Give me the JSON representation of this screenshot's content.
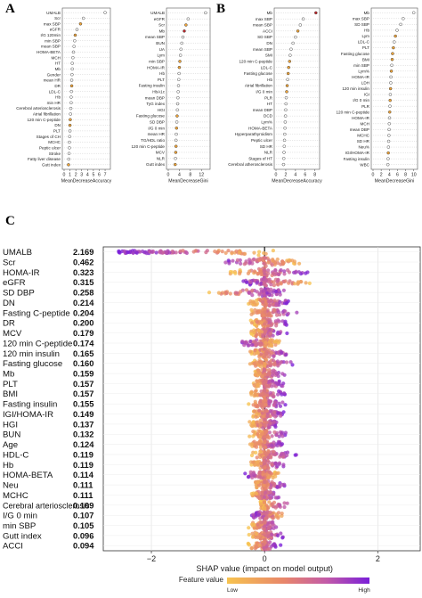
{
  "panels": {
    "A": {
      "letter": "A",
      "left": {
        "xlabel": "MeanDecreaseAccuracy",
        "ticks": [
          "0",
          "1",
          "2",
          "3",
          "4",
          "5",
          "6",
          "7"
        ],
        "xlim": [
          0,
          7.6
        ],
        "features": [
          "UMALB",
          "Scr",
          "max SBP",
          "eGFR",
          "I/G 120min",
          "min SBP",
          "mean SBP",
          "HOMA-BETA",
          "MCH",
          "HT",
          "Mb",
          "Gender",
          "mean HR",
          "DR",
          "LDL-C",
          "Hb",
          "min HR",
          "Cerebral arteriosclerosis",
          "Atrial fibrillation",
          "120 min C-peptide",
          "DN",
          "PLT",
          "Stages of CH",
          "MCHC",
          "Peptic ulcer",
          "Stroke",
          "Fatty liver disease",
          "Gutt index"
        ],
        "values": [
          7.0,
          3.3,
          2.8,
          2.2,
          1.9,
          1.8,
          1.7,
          1.6,
          1.5,
          1.4,
          1.4,
          1.35,
          1.3,
          1.3,
          1.25,
          1.2,
          1.2,
          1.15,
          1.1,
          1.05,
          1.0,
          1.0,
          0.95,
          0.9,
          0.9,
          0.85,
          0.8,
          0.75
        ],
        "fill": [
          0,
          0,
          1,
          0,
          1,
          0,
          0,
          0,
          0,
          0,
          0,
          0,
          0,
          1,
          0,
          0,
          0,
          0,
          0,
          1,
          1,
          0,
          0,
          0,
          0,
          0,
          0,
          1
        ]
      },
      "right": {
        "xlabel": "MeanDecreaseGini",
        "ticks": [
          "0",
          "4",
          "8",
          "12"
        ],
        "xlim": [
          0,
          14.5
        ],
        "features": [
          "UMALB",
          "eGFR",
          "Scr",
          "Mb",
          "mean SBP",
          "BUN",
          "UA",
          "Lym",
          "min SBP",
          "HOMA-IR",
          "Hb",
          "PLT",
          "Fasting insulin",
          "HbA1c",
          "mean DBP",
          "TyG index",
          "HGI",
          "Fasting glucose",
          "SD DBP",
          "I/G 0 min",
          "mean HR",
          "TG/HDL ratio",
          "120 min C-peptide",
          "MCV",
          "NLR",
          "Gutt index"
        ],
        "values": [
          13.5,
          7.2,
          6.4,
          5.8,
          5.3,
          4.9,
          4.6,
          4.4,
          4.2,
          4.0,
          3.9,
          3.8,
          3.7,
          3.6,
          3.5,
          3.4,
          3.3,
          3.2,
          3.1,
          3.0,
          2.9,
          2.8,
          2.8,
          2.7,
          2.6,
          2.5
        ],
        "fill": [
          0,
          0,
          1,
          2,
          0,
          0,
          0,
          0,
          1,
          1,
          0,
          0,
          0,
          0,
          0,
          0,
          0,
          1,
          0,
          1,
          0,
          0,
          1,
          1,
          0,
          1
        ]
      }
    },
    "B": {
      "letter": "B",
      "left": {
        "xlabel": "MeanDecreaseAccuracy",
        "ticks": [
          "0",
          "2",
          "4",
          "6",
          "8"
        ],
        "xlim": [
          0,
          8.6
        ],
        "features": [
          "Mb",
          "max SBP",
          "mean SBP",
          "ACCI",
          "SD SBP",
          "DN",
          "mean SBP",
          "SMI",
          "120 min C-peptide",
          "LDL-C",
          "Fasting glucose",
          "Hb",
          "Atrial fibrillation",
          "I/G 0 min",
          "PLR",
          "HT",
          "mean DBP",
          "DCD",
          "Lym%",
          "HOMA-BETA",
          "Hyperparathyroidism",
          "Peptic ulcer",
          "SD HR",
          "NLR",
          "Stages of HT",
          "Cerebral atherosclerosis"
        ],
        "values": [
          8.2,
          5.6,
          5.0,
          4.5,
          4.0,
          3.5,
          3.1,
          2.9,
          2.8,
          2.6,
          2.5,
          2.4,
          2.3,
          2.2,
          2.1,
          2.05,
          2.0,
          1.95,
          1.9,
          1.85,
          1.8,
          1.75,
          1.7,
          1.65,
          1.6,
          1.55
        ],
        "fill": [
          2,
          0,
          0,
          1,
          0,
          0,
          0,
          0,
          1,
          1,
          1,
          0,
          1,
          1,
          0,
          0,
          0,
          0,
          0,
          0,
          0,
          0,
          0,
          0,
          0,
          0
        ]
      },
      "right": {
        "xlabel": "MeanDecreaseGini",
        "ticks": [
          "0",
          "2",
          "4",
          "6",
          "8",
          "10"
        ],
        "xlim": [
          0,
          10.5
        ],
        "features": [
          "Mb",
          "max SBP",
          "SD SBP",
          "Hb",
          "Lym",
          "LDL-C",
          "PLT",
          "Fasting glucose",
          "BMI",
          "min SBP",
          "Lym%",
          "HOMA-IR",
          "LDH",
          "120 min insulin",
          "IGI",
          "I/G 0 min",
          "PLR",
          "120 min C-peptide",
          "HOMA-IR",
          "MCH",
          "mean DBP",
          "MCHC",
          "SD HR",
          "Neu%",
          "IGI/HOMA-IR",
          "Fasting insulin",
          "WBC"
        ],
        "values": [
          10.0,
          7.4,
          6.8,
          5.9,
          5.5,
          5.2,
          5.0,
          4.8,
          4.7,
          4.6,
          4.5,
          4.4,
          4.35,
          4.3,
          4.25,
          4.2,
          4.15,
          4.1,
          4.05,
          4.0,
          3.95,
          3.9,
          3.85,
          3.8,
          3.75,
          3.7,
          3.65
        ],
        "fill": [
          0,
          0,
          0,
          0,
          1,
          0,
          1,
          1,
          1,
          0,
          1,
          0,
          0,
          1,
          0,
          1,
          0,
          1,
          0,
          0,
          0,
          0,
          0,
          0,
          1,
          0,
          0
        ]
      }
    },
    "C": {
      "letter": "C",
      "features": [
        "UMALB",
        "Scr",
        "HOMA-IR",
        "eGFR",
        "SD DBP",
        "DN",
        "Fasting C-peptide",
        "DR",
        "MCV",
        "120 min C-peptide",
        "120 min insulin",
        "Fasting glucose",
        "Mb",
        "PLT",
        "BMI",
        "Fasting insulin",
        "IGI/HOMA-IR",
        "HGI",
        "BUN",
        "Age",
        "HDL-C",
        "Hb",
        "HOMA-BETA",
        "Neu",
        "MCHC",
        "Cerebral arteriosclerosis",
        "I/G 0 min",
        "min SBP",
        "Gutt index",
        "ACCI"
      ],
      "importance": [
        "2.169",
        "0.462",
        "0.323",
        "0.315",
        "0.258",
        "0.214",
        "0.204",
        "0.200",
        "0.179",
        "0.174",
        "0.165",
        "0.160",
        "0.159",
        "0.157",
        "0.157",
        "0.155",
        "0.149",
        "0.137",
        "0.132",
        "0.124",
        "0.119",
        "0.119",
        "0.114",
        "0.111",
        "0.111",
        "0.109",
        "0.107",
        "0.105",
        "0.096",
        "0.094"
      ],
      "spread": [
        {
          "min": -2.6,
          "max": 0.2,
          "dir": "neg"
        },
        {
          "min": -0.9,
          "max": 0.7,
          "dir": "neg"
        },
        {
          "min": -0.7,
          "max": 0.9,
          "dir": "pos"
        },
        {
          "min": -0.5,
          "max": 0.9,
          "dir": "neg"
        },
        {
          "min": -1.2,
          "max": 0.5,
          "dir": "pos"
        },
        {
          "min": -0.3,
          "max": 0.5,
          "dir": "pos"
        },
        {
          "min": -0.3,
          "max": 0.6,
          "dir": "pos"
        },
        {
          "min": -0.3,
          "max": 0.5,
          "dir": "pos"
        },
        {
          "min": -0.3,
          "max": 0.4,
          "dir": "pos"
        },
        {
          "min": -0.5,
          "max": 0.3,
          "dir": "neg"
        },
        {
          "min": -0.3,
          "max": 0.5,
          "dir": "pos"
        },
        {
          "min": -0.3,
          "max": 0.6,
          "dir": "pos"
        },
        {
          "min": -0.3,
          "max": 0.4,
          "dir": "pos"
        },
        {
          "min": -0.3,
          "max": 0.4,
          "dir": "pos"
        },
        {
          "min": -0.3,
          "max": 0.4,
          "dir": "pos"
        },
        {
          "min": -0.3,
          "max": 0.4,
          "dir": "pos"
        },
        {
          "min": -0.3,
          "max": 0.4,
          "dir": "pos"
        },
        {
          "min": -0.3,
          "max": 0.3,
          "dir": "pos"
        },
        {
          "min": -0.3,
          "max": 0.5,
          "dir": "pos"
        },
        {
          "min": -0.3,
          "max": 0.4,
          "dir": "pos"
        },
        {
          "min": -0.3,
          "max": 0.6,
          "dir": "pos"
        },
        {
          "min": -0.3,
          "max": 0.4,
          "dir": "pos"
        },
        {
          "min": -0.4,
          "max": 0.3,
          "dir": "neg"
        },
        {
          "min": -0.2,
          "max": 0.4,
          "dir": "pos"
        },
        {
          "min": -0.3,
          "max": 0.3,
          "dir": "pos"
        },
        {
          "min": -0.1,
          "max": 0.5,
          "dir": "pos"
        },
        {
          "min": -0.3,
          "max": 0.4,
          "dir": "neg"
        },
        {
          "min": -0.3,
          "max": 0.3,
          "dir": "pos"
        },
        {
          "min": -0.3,
          "max": 0.4,
          "dir": "pos"
        },
        {
          "min": -0.3,
          "max": 0.3,
          "dir": "pos"
        }
      ],
      "xlabel": "SHAP value (impact on model output)",
      "xticks": [
        "−2",
        "0",
        "2"
      ],
      "xlim": [
        -2.85,
        2.75
      ],
      "colorbar_title": "Feature value",
      "colorbar_low": "Low",
      "colorbar_high": "High",
      "colors": {
        "low": "#f5b94a",
        "high": "#7d1fd6"
      }
    }
  },
  "chart_data": [
    {
      "type": "scatter",
      "title": "",
      "xlabel": "SHAP value (impact on model output)",
      "ylabel": "",
      "xlim": [
        -2.85,
        2.75
      ],
      "categories": [
        "UMALB",
        "Scr",
        "HOMA-IR",
        "eGFR",
        "SD DBP",
        "DN",
        "Fasting C-peptide",
        "DR",
        "MCV",
        "120 min C-peptide",
        "120 min insulin",
        "Fasting glucose",
        "Mb",
        "PLT",
        "BMI",
        "Fasting insulin",
        "IGI/HOMA-IR",
        "HGI",
        "BUN",
        "Age",
        "HDL-C",
        "Hb",
        "HOMA-BETA",
        "Neu",
        "MCHC",
        "Cerebral arteriosclerosis",
        "I/G 0 min",
        "min SBP",
        "Gutt index",
        "ACCI"
      ],
      "values": [
        2.169,
        0.462,
        0.323,
        0.315,
        0.258,
        0.214,
        0.204,
        0.2,
        0.179,
        0.174,
        0.165,
        0.16,
        0.159,
        0.157,
        0.157,
        0.155,
        0.149,
        0.137,
        0.132,
        0.124,
        0.119,
        0.119,
        0.114,
        0.111,
        0.111,
        0.109,
        0.107,
        0.105,
        0.096,
        0.094
      ]
    }
  ]
}
